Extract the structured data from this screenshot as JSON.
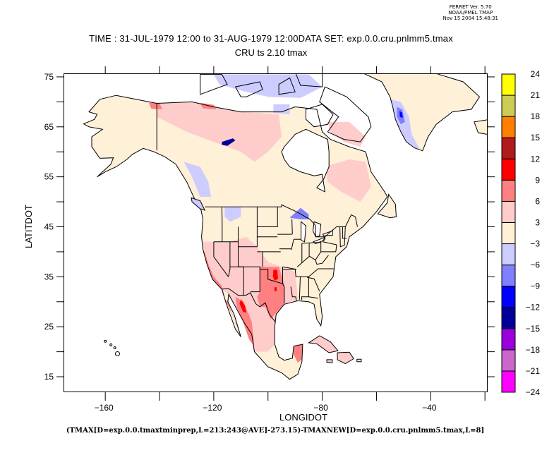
{
  "stamp": {
    "line1": "FERRET Ver. 5.70",
    "line2": "NOAA/PMEL TMAP",
    "line3": "Nov 15 2004 15:48:31"
  },
  "title": {
    "line1": "TIME : 31-JUL-1979 12:00 to 31-AUG-1979 12:00DATA SET: exp.0.0.cru.pnlmm5.tmax",
    "line2": "CRU ts 2.10 tmax"
  },
  "footer": "(TMAX[D=exp.0.0.tmaxtminprep,L=213:243@AVE]-273.15)-TMAXNEW[D=exp.0.0.cru.pnlmm5.tmax,L=8]",
  "chart_data": {
    "type": "heatmap",
    "title": "TIME : 31-JUL-1979 12:00 to 31-AUG-1979 12:00DATA SET: exp.0.0.cru.pnlmm5.tmax",
    "subtitle": "CRU ts 2.10 tmax",
    "xlabel": "LONGIDOT",
    "ylabel": "LATITDOT",
    "xlim": [
      -175.4,
      -19.0
    ],
    "ylim": [
      11.9,
      75.7
    ],
    "xticks": [
      -160,
      -140,
      -120,
      -100,
      -80,
      -60,
      -40,
      -20
    ],
    "xtick_labels": [
      "-160",
      "",
      "-120",
      "",
      "-80",
      "",
      "-40",
      ""
    ],
    "yticks": [
      15,
      20,
      25,
      30,
      35,
      40,
      45,
      50,
      55,
      60,
      65,
      70,
      75
    ],
    "ytick_labels": [
      "15",
      "",
      "25",
      "",
      "35",
      "",
      "45",
      "",
      "55",
      "",
      "65",
      "",
      "75"
    ],
    "colorbar": {
      "levels": [
        -24,
        -21,
        -18,
        -15,
        -12,
        -9,
        -6,
        -3,
        3,
        6,
        9,
        12,
        15,
        18,
        21,
        24
      ],
      "colors": [
        "#ff00ff",
        "#cc66cc",
        "#9900dd",
        "#000099",
        "#0000ff",
        "#8080ff",
        "#ccccff",
        "#fff0d8",
        "#ffcccc",
        "#ff8080",
        "#ff0000",
        "#b01c1c",
        "#ff8000",
        "#cccc55",
        "#ffff00"
      ],
      "labels": [
        "-24",
        "-21",
        "-18",
        "-15",
        "-12",
        "-9",
        "-6",
        "-3",
        "3",
        "6",
        "9",
        "12",
        "15",
        "18",
        "21",
        "24"
      ]
    },
    "regions": [
      {
        "name": "north-america-base",
        "class_index": 7,
        "approx_value": 0
      },
      {
        "name": "northern-canada-warm",
        "class_index": 8,
        "approx_value": 4
      },
      {
        "name": "alaska-north-slope-warm",
        "class_index": 9,
        "approx_value": 7
      },
      {
        "name": "canadian-archipelago-cool",
        "class_index": 6,
        "approx_value": -4
      },
      {
        "name": "greenland-west-cool",
        "class_index": 6,
        "approx_value": -4
      },
      {
        "name": "greenland-west-core",
        "class_index": 5,
        "approx_value": -8
      },
      {
        "name": "greenland-deep-core",
        "class_index": 4,
        "approx_value": -10
      },
      {
        "name": "great-slave-lake",
        "class_index": 3,
        "approx_value": -13
      },
      {
        "name": "lake-superior",
        "class_index": 5,
        "approx_value": -7
      },
      {
        "name": "southwest-us-warm",
        "class_index": 8,
        "approx_value": 4
      },
      {
        "name": "texas-oklahoma-hot",
        "class_index": 9,
        "approx_value": 7
      },
      {
        "name": "oklahoma-core",
        "class_index": 10,
        "approx_value": 10
      },
      {
        "name": "california-coast-hot",
        "class_index": 9,
        "approx_value": 7
      },
      {
        "name": "gulf-of-california-hot",
        "class_index": 10,
        "approx_value": 10
      },
      {
        "name": "yucatan-warm",
        "class_index": 9,
        "approx_value": 6
      }
    ]
  }
}
